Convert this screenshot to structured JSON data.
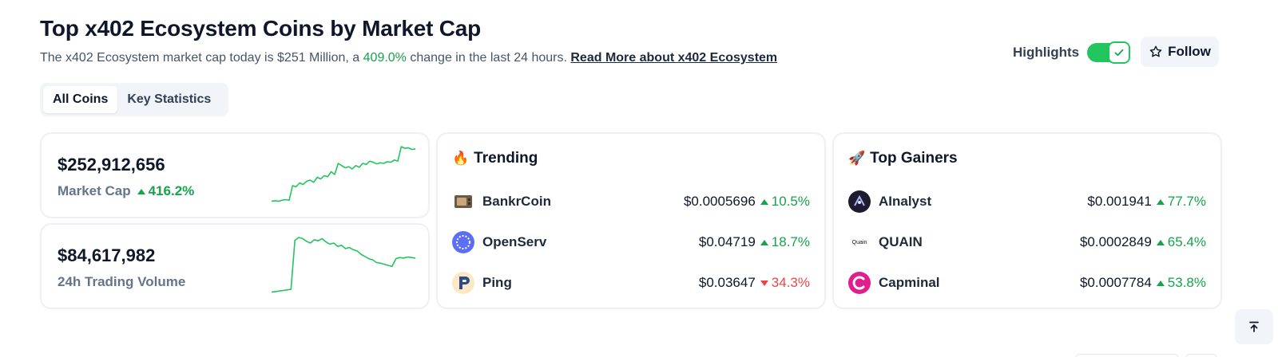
{
  "header": {
    "title": "Top x402 Ecosystem Coins by Market Cap",
    "subtitle_pre": "The x402 Ecosystem market cap today is $251 Million, a ",
    "subtitle_change": "409.0%",
    "subtitle_post": " change in the last 24 hours. ",
    "read_more": "Read More about x402 Ecosystem",
    "highlights_label": "Highlights",
    "highlights_on": true,
    "follow_label": "Follow"
  },
  "tabs": [
    {
      "label": "All Coins",
      "active": true
    },
    {
      "label": "Key Statistics",
      "active": false
    }
  ],
  "stats": {
    "market_cap": {
      "value": "$252,912,656",
      "label": "Market Cap",
      "change": "416.2%",
      "direction": "up"
    },
    "volume": {
      "value": "$84,617,982",
      "label": "24h Trading Volume"
    }
  },
  "sparklines": {
    "color": "#22c55e",
    "market_cap": [
      0.02,
      0.03,
      0.02,
      0.04,
      0.05,
      0.04,
      0.3,
      0.28,
      0.35,
      0.32,
      0.38,
      0.4,
      0.36,
      0.45,
      0.42,
      0.48,
      0.46,
      0.55,
      0.5,
      0.7,
      0.66,
      0.62,
      0.64,
      0.6,
      0.66,
      0.63,
      0.7,
      0.68,
      0.74,
      0.72,
      0.69,
      0.71,
      0.7,
      0.73,
      0.72,
      0.76,
      0.74,
      1.0,
      0.97,
      0.98,
      0.95,
      0.96
    ],
    "volume": [
      0.02,
      0.03,
      0.04,
      0.05,
      0.06,
      0.07,
      0.95,
      1.0,
      0.98,
      0.93,
      0.9,
      0.96,
      0.94,
      0.98,
      0.92,
      0.88,
      0.9,
      0.84,
      0.86,
      0.8,
      0.82,
      0.78,
      0.76,
      0.7,
      0.66,
      0.62,
      0.6,
      0.55,
      0.54,
      0.52,
      0.5,
      0.48,
      0.62,
      0.64,
      0.63,
      0.65,
      0.64,
      0.63
    ]
  },
  "trending": {
    "title": "Trending",
    "icon": "fire-icon",
    "coins": [
      {
        "name": "BankrCoin",
        "price": "$0.0005696",
        "change": "10.5%",
        "direction": "up",
        "logo": "bankr-logo-icon",
        "logo_color": "#5b4a3a"
      },
      {
        "name": "OpenServ",
        "price": "$0.04719",
        "change": "18.7%",
        "direction": "up",
        "logo": "openserv-logo-icon",
        "logo_color": "#5b6ef5"
      },
      {
        "name": "Ping",
        "price": "$0.03647",
        "change": "34.3%",
        "direction": "down",
        "logo": "ping-logo-icon",
        "logo_color": "#2b4c8c"
      }
    ]
  },
  "gainers": {
    "title": "Top Gainers",
    "icon": "rocket-icon",
    "coins": [
      {
        "name": "AInalyst",
        "price": "$0.001941",
        "change": "77.7%",
        "direction": "up",
        "logo": "ainalyst-logo-icon",
        "logo_color": "#1e1b2e"
      },
      {
        "name": "QUAIN",
        "price": "$0.0002849",
        "change": "65.4%",
        "direction": "up",
        "logo": "quain-logo-icon",
        "logo_color": "#ffffff",
        "logo_text": "Quain"
      },
      {
        "name": "Capminal",
        "price": "$0.0007784",
        "change": "53.8%",
        "direction": "up",
        "logo": "capminal-logo-icon",
        "logo_color": "#e11d8f"
      }
    ]
  },
  "colors": {
    "positive": "#16a34a",
    "negative": "#ef4444",
    "accent": "#22c55e"
  }
}
